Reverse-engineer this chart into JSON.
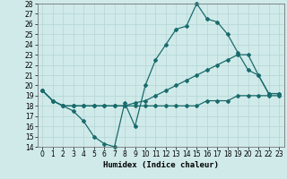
{
  "xlabel": "Humidex (Indice chaleur)",
  "xlim": [
    -0.5,
    23.5
  ],
  "ylim": [
    14,
    28
  ],
  "xticks": [
    0,
    1,
    2,
    3,
    4,
    5,
    6,
    7,
    8,
    9,
    10,
    11,
    12,
    13,
    14,
    15,
    16,
    17,
    18,
    19,
    20,
    21,
    22,
    23
  ],
  "yticks": [
    14,
    15,
    16,
    17,
    18,
    19,
    20,
    21,
    22,
    23,
    24,
    25,
    26,
    27,
    28
  ],
  "background_color": "#d0eaea",
  "grid_color": "#b8d8d8",
  "line_color": "#1a6b6b",
  "line1_x": [
    0,
    1,
    2,
    3,
    4,
    5,
    6,
    7,
    8,
    9,
    10,
    11,
    12,
    13,
    14,
    15,
    16,
    17,
    18,
    19,
    20,
    21,
    22,
    23
  ],
  "line1_y": [
    19.5,
    18.5,
    18.0,
    17.5,
    16.5,
    15.0,
    14.3,
    14.0,
    18.3,
    16.0,
    20.0,
    22.5,
    24.0,
    25.5,
    25.8,
    28.0,
    26.5,
    26.2,
    25.0,
    23.2,
    21.5,
    21.0,
    19.2,
    19.2
  ],
  "line2_x": [
    0,
    1,
    2,
    3,
    4,
    5,
    6,
    7,
    8,
    9,
    10,
    11,
    12,
    13,
    14,
    15,
    16,
    17,
    18,
    19,
    20,
    21,
    22,
    23
  ],
  "line2_y": [
    19.5,
    18.5,
    18.0,
    18.0,
    18.0,
    18.0,
    18.0,
    18.0,
    18.0,
    18.3,
    18.5,
    19.0,
    19.5,
    20.0,
    20.5,
    21.0,
    21.5,
    22.0,
    22.5,
    23.0,
    23.0,
    21.0,
    19.2,
    19.2
  ],
  "line3_x": [
    0,
    1,
    2,
    3,
    4,
    5,
    6,
    7,
    8,
    9,
    10,
    11,
    12,
    13,
    14,
    15,
    16,
    17,
    18,
    19,
    20,
    21,
    22,
    23
  ],
  "line3_y": [
    19.5,
    18.5,
    18.0,
    18.0,
    18.0,
    18.0,
    18.0,
    18.0,
    18.0,
    18.0,
    18.0,
    18.0,
    18.0,
    18.0,
    18.0,
    18.0,
    18.5,
    18.5,
    18.5,
    19.0,
    19.0,
    19.0,
    19.0,
    19.0
  ],
  "tick_fontsize": 5.5,
  "label_fontsize": 6.5
}
